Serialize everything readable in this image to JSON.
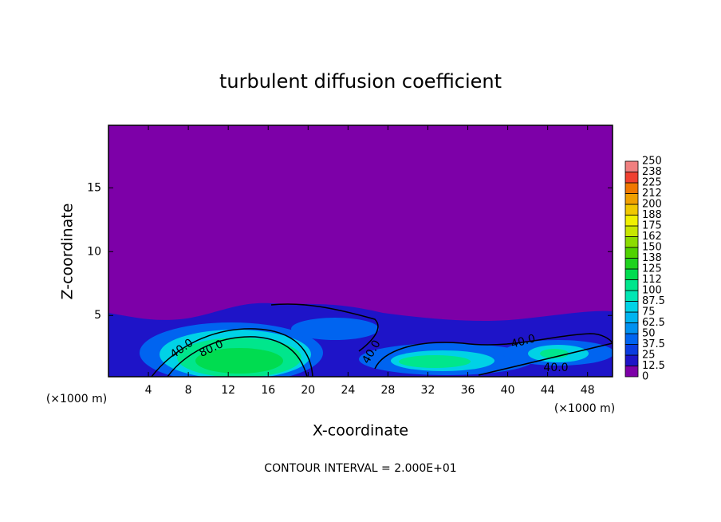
{
  "chart_data": {
    "type": "contour",
    "title": "turbulent diffusion coefficient",
    "xlabel": "X-coordinate",
    "ylabel": "Z-coordinate",
    "unit_label": "(×1000 m)",
    "footer": "CONTOUR INTERVAL = 2.000E+01",
    "xlim": [
      0,
      50.5
    ],
    "xticks": [
      4,
      8,
      12,
      16,
      20,
      24,
      28,
      32,
      36,
      40,
      44,
      48
    ],
    "ylim": [
      0.2,
      19.9
    ],
    "yticks": [
      5,
      10,
      15
    ],
    "levels": [
      0,
      12.5,
      25,
      37.5,
      50,
      62.5,
      75,
      87.5,
      100,
      112,
      125,
      138,
      150,
      162,
      175,
      188,
      200,
      212,
      225,
      238,
      250
    ],
    "level_colors": [
      "#7d00a8",
      "#1e14c8",
      "#0a3ce0",
      "#0064f0",
      "#0091f0",
      "#00b4f0",
      "#00d2e6",
      "#00e6b4",
      "#00e68c",
      "#00dc50",
      "#1ed21e",
      "#50d200",
      "#8cdc00",
      "#c8e600",
      "#f0f000",
      "#f0c800",
      "#f0a000",
      "#f07800",
      "#f04030",
      "#f08080"
    ],
    "contour_labels": [
      {
        "value": 40,
        "label": "40.0"
      },
      {
        "value": 80,
        "label": "80.0"
      },
      {
        "value": 40,
        "label": "40.0"
      },
      {
        "value": 40,
        "label": "40.0"
      },
      {
        "value": 40,
        "label": "40.0"
      }
    ]
  }
}
